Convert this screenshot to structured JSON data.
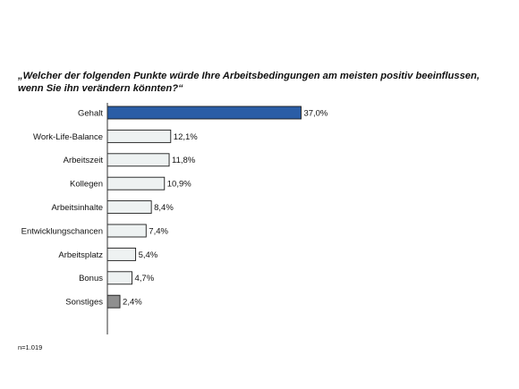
{
  "chart_data": {
    "type": "bar",
    "orientation": "horizontal",
    "title": "„Welcher der folgenden Punkte würde Ihre Arbeitsbedingungen am meisten positiv beeinflussen, wenn Sie ihn verändern könnten?“",
    "categories": [
      "Gehalt",
      "Work-Life-Balance",
      "Arbeitszeit",
      "Kollegen",
      "Arbeitsinhalte",
      "Entwicklungschancen",
      "Arbeitsplatz",
      "Bonus",
      "Sonstiges"
    ],
    "values": [
      37.0,
      12.1,
      11.8,
      10.9,
      8.4,
      7.4,
      5.4,
      4.7,
      2.4
    ],
    "value_labels": [
      "37,0%",
      "12,1%",
      "11,8%",
      "10,9%",
      "8,4%",
      "7,4%",
      "5,4%",
      "4,7%",
      "2,4%"
    ],
    "bar_colors": [
      "#2a5da6",
      "#eef2f2",
      "#eef2f2",
      "#eef2f2",
      "#eef2f2",
      "#eef2f2",
      "#eef2f2",
      "#eef2f2",
      "#8f8f8f"
    ],
    "xlim": [
      0,
      40
    ],
    "grid": false,
    "legend": "none"
  },
  "footnote": "n=1.019"
}
